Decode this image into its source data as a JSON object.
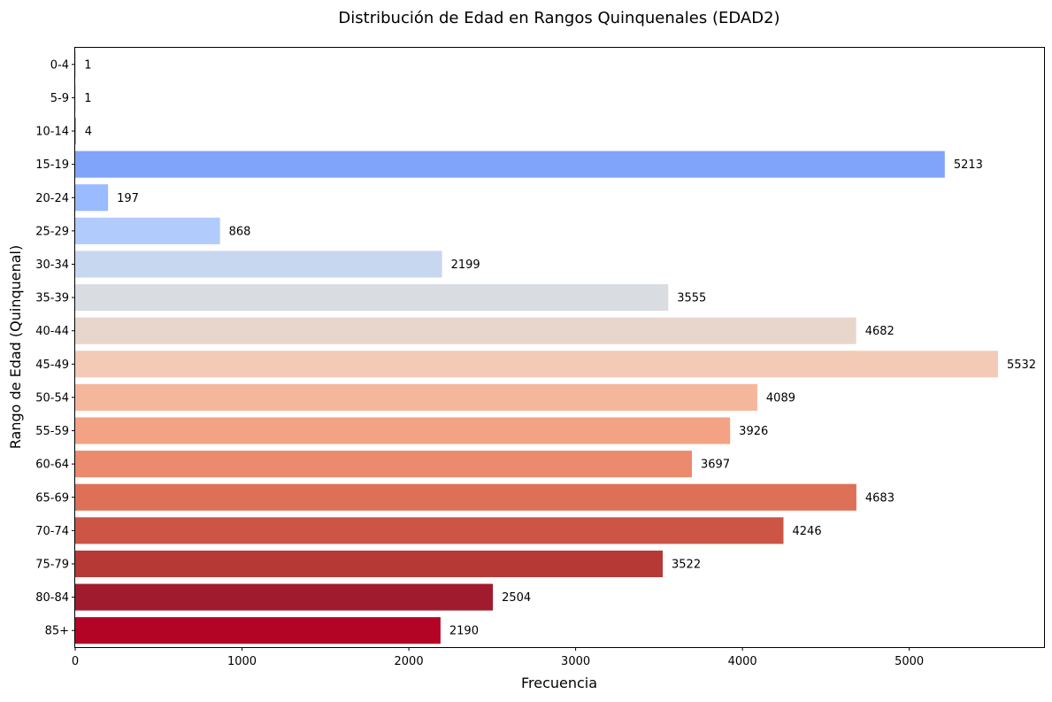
{
  "chart_data": {
    "type": "bar",
    "orientation": "horizontal",
    "title": "Distribución de Edad en Rangos Quinquenales (EDAD2)",
    "xlabel": "Frecuencia",
    "ylabel": "Rango de Edad (Quinquenal)",
    "xlim": [
      0,
      5808
    ],
    "xticks": [
      0,
      1000,
      2000,
      3000,
      4000,
      5000
    ],
    "grid": false,
    "categories": [
      "0-4",
      "5-9",
      "10-14",
      "15-19",
      "20-24",
      "25-29",
      "30-34",
      "35-39",
      "40-44",
      "45-49",
      "50-54",
      "55-59",
      "60-64",
      "65-69",
      "70-74",
      "75-79",
      "80-84",
      "85+"
    ],
    "values": [
      1,
      1,
      4,
      5213,
      197,
      868,
      2199,
      3555,
      4682,
      5532,
      4089,
      3926,
      3697,
      4683,
      4246,
      3522,
      2504,
      2190
    ],
    "colors": [
      "#3b4cc0",
      "#4f69d9",
      "#6788ee",
      "#81a4fb",
      "#9abbff",
      "#b1cbfc",
      "#c7d7f0",
      "#d9dce1",
      "#e8d6cc",
      "#f2cab5",
      "#f5b79c",
      "#f3a284",
      "#ec8a6d",
      "#de7058",
      "#cc5546",
      "#b73935",
      "#a01b2e",
      "#b40426"
    ],
    "palette": "coolwarm"
  }
}
